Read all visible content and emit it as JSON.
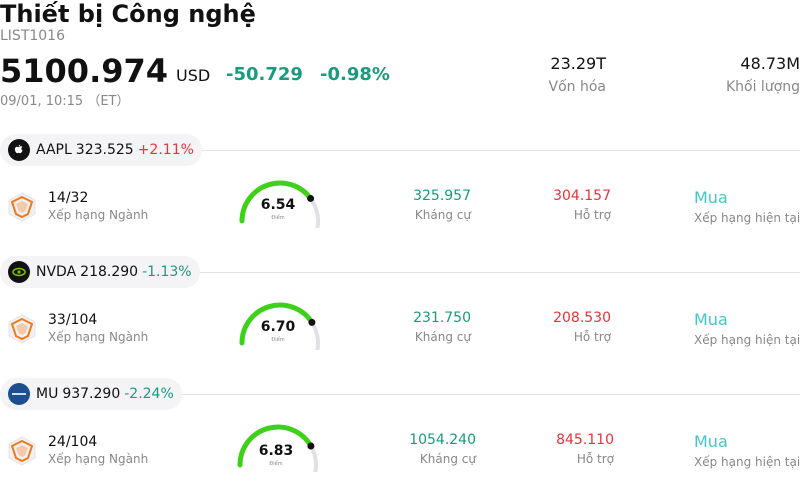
{
  "header": {
    "title": "Thiết bị Công nghệ",
    "code": "LIST1016",
    "price": "5100.974",
    "currency": "USD",
    "change": "-50.729",
    "change_pct": "-0.98%",
    "time": "09/01, 10:15 （ET）",
    "market_cap_value": "23.29T",
    "market_cap_label": "Vốn hóa",
    "volume_value": "48.73M",
    "volume_label": "Khối lượng"
  },
  "colors": {
    "up": "#e8333c",
    "down": "#1a9a7e",
    "rating": "#44c7c4",
    "gauge_fill": "#3fd11a",
    "gauge_track": "#e0e0e6"
  },
  "stocks": [
    {
      "symbol": "AAPL",
      "price": "323.525",
      "change_pct": "+2.11%",
      "direction": "up",
      "logo": "apple-icon",
      "rank": "14/32",
      "rank_label": "Xếp hạng Ngành",
      "score": "6.54",
      "score_fraction": 0.654,
      "score_label": "Điểm",
      "resistance": "325.957",
      "resistance_label": "Kháng cự",
      "support": "304.157",
      "support_label": "Hỗ trợ",
      "rating": "Mua",
      "rating_label": "Xếp hạng hiện tại"
    },
    {
      "symbol": "NVDA",
      "price": "218.290",
      "change_pct": "-1.13%",
      "direction": "down",
      "logo": "nvidia-icon",
      "rank": "33/104",
      "rank_label": "Xếp hạng Ngành",
      "score": "6.70",
      "score_fraction": 0.67,
      "score_label": "Điểm",
      "resistance": "231.750",
      "resistance_label": "Kháng cự",
      "support": "208.530",
      "support_label": "Hỗ trợ",
      "rating": "Mua",
      "rating_label": "Xếp hạng hiện tại"
    },
    {
      "symbol": "MU",
      "price": "937.290",
      "change_pct": "-2.24%",
      "direction": "down",
      "logo": "micron-icon",
      "rank": "24/104",
      "rank_label": "Xếp hạng Ngành",
      "score": "6.83",
      "score_fraction": 0.683,
      "score_label": "Điểm",
      "resistance": "1054.240",
      "resistance_label": "Kháng cự",
      "support": "845.110",
      "support_label": "Hỗ trợ",
      "rating": "Mua",
      "rating_label": "Xếp hạng hiện tại"
    }
  ]
}
